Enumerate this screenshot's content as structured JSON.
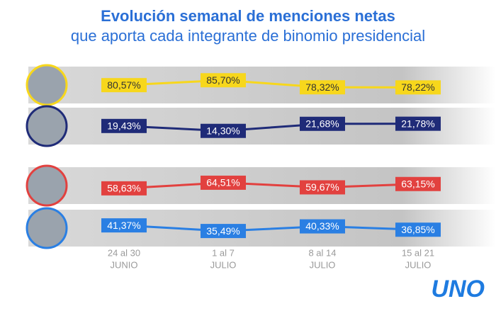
{
  "chart_data": {
    "type": "line",
    "title": "Evolución semanal de menciones netas",
    "subtitle": "que aporta cada integrante de binomio presidencial",
    "categories": [
      [
        "24 al 30",
        "JUNIO"
      ],
      [
        "1 al 7",
        "JULIO"
      ],
      [
        "8 al 14",
        "JULIO"
      ],
      [
        "15 al 21",
        "JULIO"
      ]
    ],
    "series": [
      {
        "color": "#f7d71c",
        "values": [
          80.57,
          85.7,
          78.32,
          78.22
        ],
        "value_labels": [
          "80,57%",
          "85,70%",
          "78,32%",
          "78,22%"
        ]
      },
      {
        "color": "#1f2b78",
        "values": [
          19.43,
          14.3,
          21.68,
          21.78
        ],
        "value_labels": [
          "19,43%",
          "14,30%",
          "21,68%",
          "21,78%"
        ]
      },
      {
        "color": "#e2413f",
        "values": [
          58.63,
          64.51,
          59.67,
          63.15
        ],
        "value_labels": [
          "58,63%",
          "64,51%",
          "59,67%",
          "63,15%"
        ]
      },
      {
        "color": "#2a7fe3",
        "values": [
          41.37,
          35.49,
          40.33,
          36.85
        ],
        "value_labels": [
          "41,37%",
          "35,49%",
          "40,33%",
          "36,85%"
        ]
      }
    ],
    "logo": "UNO"
  }
}
